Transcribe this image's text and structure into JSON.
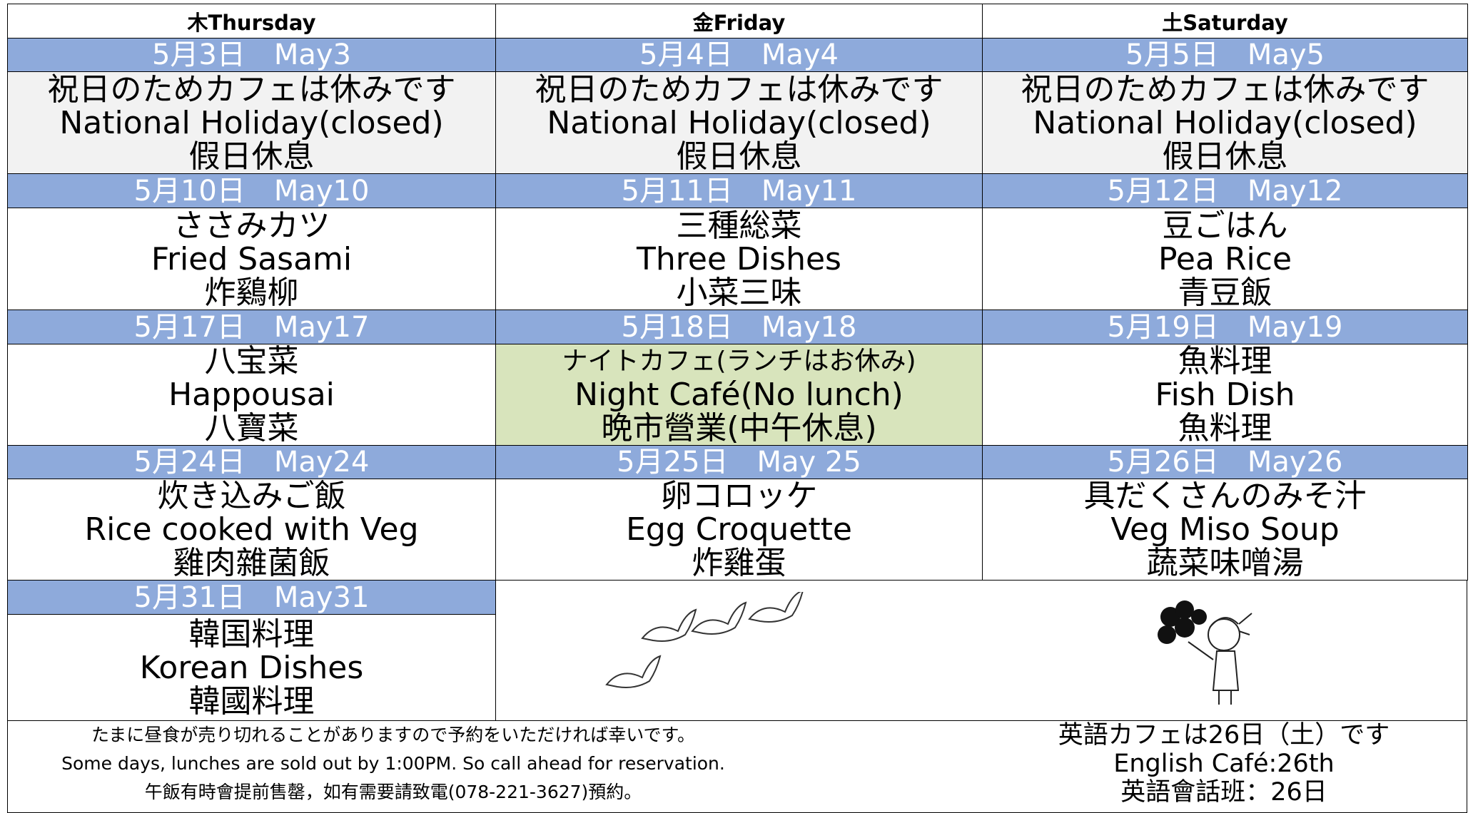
{
  "header": {
    "days": [
      "木Thursday",
      "金Friday",
      "土Saturday"
    ]
  },
  "weeks": [
    {
      "dates": [
        "5月3日　May3",
        "5月4日　May4",
        "5月5日　May5"
      ],
      "cells": [
        [
          "祝日のためカフェは休みです",
          "National Holiday(closed)",
          "假日休息"
        ],
        [
          "祝日のためカフェは休みです",
          "National Holiday(closed)",
          "假日休息"
        ],
        [
          "祝日のためカフェは休みです",
          "National Holiday(closed)",
          "假日休息"
        ]
      ]
    },
    {
      "dates": [
        "5月10日　May10",
        "5月11日　May11",
        "5月12日　May12"
      ],
      "cells": [
        [
          "ささみカツ",
          "Fried Sasami",
          "炸鷄柳"
        ],
        [
          "三種総菜",
          "Three Dishes",
          "小菜三味"
        ],
        [
          "豆ごはん",
          "Pea Rice",
          "青豆飯"
        ]
      ]
    },
    {
      "dates": [
        "5月17日　May17",
        "5月18日　May18",
        "5月19日　May19"
      ],
      "cells": [
        [
          "八宝菜",
          "Happousai",
          "八寶菜"
        ],
        [
          "ナイトカフェ(ランチはお休み)",
          "Night Café(No lunch)",
          "晩市營業(中午休息)"
        ],
        [
          "魚料理",
          "Fish Dish",
          "魚料理"
        ]
      ]
    },
    {
      "dates": [
        "5月24日　May24",
        "5月25日　May 25",
        "5月26日　May26"
      ],
      "cells": [
        [
          "炊き込みご飯",
          "Rice cooked with Veg",
          "雞肉雜菌飯"
        ],
        [
          "卵コロッケ",
          "Egg Croquette",
          "炸雞蛋"
        ],
        [
          "具だくさんのみそ汁",
          "Veg Miso Soup",
          "蔬菜味噌湯"
        ]
      ]
    },
    {
      "dates": [
        "5月31日　May31"
      ],
      "cells": [
        [
          "韓国料理",
          "Korean Dishes",
          "韓國料理"
        ]
      ]
    }
  ],
  "footer": {
    "left": [
      "たまに昼食が売り切れることがありますので予約をいただければ幸いです。",
      "Some days, lunches are sold out by 1:00PM. So call ahead for reservation.",
      "午飯有時會提前售罄，如有需要請致電(078-221-3627)預約。"
    ],
    "right": [
      "英語カフェは26日（土）です",
      "English Café:26th",
      "英語會話班：26日"
    ]
  }
}
